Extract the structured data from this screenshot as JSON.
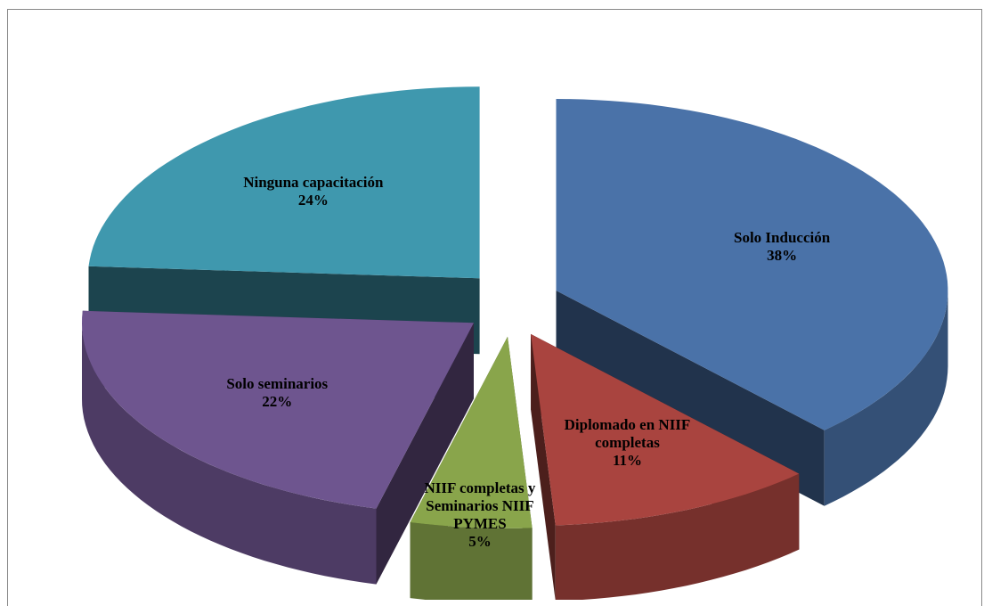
{
  "chart_data": {
    "type": "pie",
    "categories": [
      "Solo Inducción",
      "Diplomado en NIIF completas",
      "NIIF completas y Seminarios NIIF PYMES",
      "Solo seminarios",
      "Ninguna capacitación"
    ],
    "values": [
      38,
      11,
      5,
      22,
      24
    ],
    "value_labels": [
      "38%",
      "11%",
      "5%",
      "22%",
      "24%"
    ],
    "colors": [
      "#4a72a8",
      "#a9443f",
      "#89a54b",
      "#6e558f",
      "#3f98ae"
    ]
  }
}
